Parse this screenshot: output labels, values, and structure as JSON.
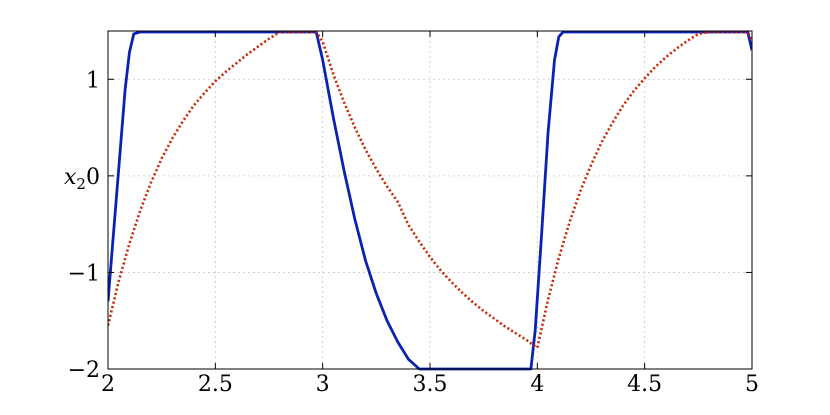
{
  "chart_data": {
    "type": "line",
    "title": "",
    "xlabel": "",
    "ylabel": "x",
    "ylabel_sub": "2",
    "xlim": [
      2,
      5
    ],
    "ylim": [
      -2,
      1.5
    ],
    "grid": true,
    "legend": "none",
    "x_ticks": [
      2,
      2.5,
      3,
      3.5,
      4,
      4.5,
      5
    ],
    "x_tick_labels": [
      "2",
      "2.5",
      "3",
      "3.5",
      "4",
      "4.5",
      "5"
    ],
    "y_ticks": [
      -2,
      -1,
      0,
      1
    ],
    "y_tick_labels": [
      "−2",
      "−1",
      "0",
      "1"
    ],
    "series": [
      {
        "color": "#0a22b4",
        "style": "solid",
        "x": [
          2.0,
          2.04,
          2.08,
          2.1,
          2.12,
          2.15,
          2.2,
          2.6,
          2.97,
          3.0,
          3.05,
          3.1,
          3.15,
          3.2,
          3.25,
          3.3,
          3.35,
          3.4,
          3.45,
          3.5,
          3.7,
          3.9,
          3.97,
          3.99,
          4.02,
          4.05,
          4.08,
          4.1,
          4.12,
          4.2,
          4.6,
          4.98,
          5.0
        ],
        "y": [
          -1.3,
          -0.2,
          0.9,
          1.28,
          1.47,
          1.49,
          1.49,
          1.49,
          1.49,
          1.2,
          0.6,
          0.05,
          -0.45,
          -0.88,
          -1.22,
          -1.5,
          -1.72,
          -1.9,
          -2.0,
          -2.0,
          -2.0,
          -2.0,
          -2.0,
          -1.6,
          -0.6,
          0.45,
          1.2,
          1.44,
          1.49,
          1.49,
          1.49,
          1.49,
          1.3
        ]
      },
      {
        "color": "#cc2200",
        "style": "dotted",
        "x": [
          2.0,
          2.05,
          2.1,
          2.15,
          2.2,
          2.25,
          2.3,
          2.35,
          2.4,
          2.45,
          2.5,
          2.55,
          2.6,
          2.65,
          2.7,
          2.75,
          2.8,
          2.9,
          2.97,
          3.0,
          3.05,
          3.1,
          3.15,
          3.2,
          3.25,
          3.3,
          3.35,
          3.4,
          3.45,
          3.5,
          3.55,
          3.6,
          3.65,
          3.7,
          3.75,
          3.8,
          3.85,
          3.9,
          3.95,
          3.98,
          4.0,
          4.05,
          4.1,
          4.15,
          4.2,
          4.25,
          4.3,
          4.35,
          4.4,
          4.45,
          4.5,
          4.55,
          4.6,
          4.65,
          4.7,
          4.75,
          4.8,
          4.9,
          4.98,
          5.0
        ],
        "y": [
          -1.55,
          -1.09,
          -0.7,
          -0.36,
          -0.07,
          0.18,
          0.39,
          0.57,
          0.73,
          0.86,
          0.98,
          1.08,
          1.17,
          1.26,
          1.34,
          1.42,
          1.49,
          1.49,
          1.49,
          1.39,
          1.05,
          0.76,
          0.5,
          0.27,
          0.07,
          -0.11,
          -0.27,
          -0.51,
          -0.68,
          -0.84,
          -0.98,
          -1.1,
          -1.21,
          -1.31,
          -1.4,
          -1.48,
          -1.56,
          -1.63,
          -1.7,
          -1.75,
          -1.78,
          -1.28,
          -0.85,
          -0.48,
          -0.16,
          0.11,
          0.35,
          0.55,
          0.73,
          0.88,
          1.01,
          1.13,
          1.23,
          1.32,
          1.4,
          1.47,
          1.49,
          1.49,
          1.49,
          1.4
        ]
      }
    ]
  }
}
